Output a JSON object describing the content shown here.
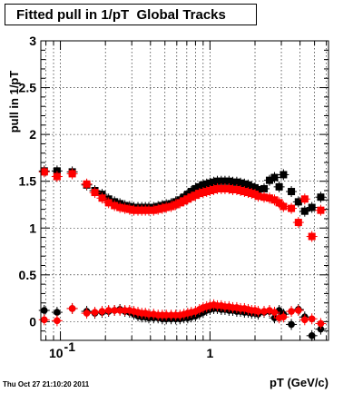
{
  "chart_data": {
    "type": "scatter",
    "title": "Fitted pull in 1/pT  Global Tracks",
    "xlabel": "pT (GeV/c)",
    "ylabel": "pull in 1/pT",
    "xscale": "log",
    "xlim": [
      0.074,
      6.2
    ],
    "ylim": [
      -0.2,
      3.0
    ],
    "grid": true,
    "yticks": [
      "0",
      "0.5",
      "1",
      "1.5",
      "2",
      "2.5",
      "3"
    ],
    "xticks": [
      "10",
      "-1",
      "1"
    ],
    "colors": {
      "black_series": "#000000",
      "red_series": "#ff0000"
    },
    "series": [
      {
        "color": "black",
        "marker": "square",
        "points": [
          [
            0.078,
            1.61
          ],
          [
            0.095,
            1.61
          ],
          [
            0.12,
            1.6
          ],
          [
            0.15,
            1.46
          ],
          [
            0.17,
            1.4
          ],
          [
            0.19,
            1.36
          ],
          [
            0.21,
            1.31
          ],
          [
            0.23,
            1.28
          ],
          [
            0.25,
            1.26
          ],
          [
            0.27,
            1.24
          ],
          [
            0.29,
            1.23
          ],
          [
            0.31,
            1.22
          ],
          [
            0.33,
            1.22
          ],
          [
            0.35,
            1.22
          ],
          [
            0.37,
            1.22
          ],
          [
            0.39,
            1.22
          ],
          [
            0.42,
            1.22
          ],
          [
            0.45,
            1.23
          ],
          [
            0.48,
            1.24
          ],
          [
            0.51,
            1.25
          ],
          [
            0.55,
            1.26
          ],
          [
            0.59,
            1.28
          ],
          [
            0.63,
            1.3
          ],
          [
            0.67,
            1.33
          ],
          [
            0.71,
            1.36
          ],
          [
            0.75,
            1.39
          ],
          [
            0.8,
            1.42
          ],
          [
            0.85,
            1.44
          ],
          [
            0.9,
            1.46
          ],
          [
            0.95,
            1.47
          ],
          [
            1.0,
            1.48
          ],
          [
            1.06,
            1.49
          ],
          [
            1.12,
            1.5
          ],
          [
            1.19,
            1.5
          ],
          [
            1.26,
            1.5
          ],
          [
            1.34,
            1.5
          ],
          [
            1.42,
            1.49
          ],
          [
            1.51,
            1.49
          ],
          [
            1.6,
            1.48
          ],
          [
            1.7,
            1.47
          ],
          [
            1.8,
            1.46
          ],
          [
            1.9,
            1.44
          ],
          [
            2.0,
            1.43
          ],
          [
            2.1,
            1.41
          ],
          [
            2.3,
            1.42
          ],
          [
            2.5,
            1.51
          ],
          [
            2.7,
            1.54
          ],
          [
            2.9,
            1.44
          ],
          [
            3.1,
            1.57
          ],
          [
            3.5,
            1.39
          ],
          [
            3.9,
            1.28
          ],
          [
            4.3,
            1.18
          ],
          [
            4.8,
            1.22
          ],
          [
            5.5,
            1.33
          ]
        ]
      },
      {
        "color": "red",
        "marker": "square",
        "points": [
          [
            0.078,
            1.6
          ],
          [
            0.095,
            1.55
          ],
          [
            0.12,
            1.58
          ],
          [
            0.15,
            1.47
          ],
          [
            0.17,
            1.38
          ],
          [
            0.19,
            1.32
          ],
          [
            0.21,
            1.27
          ],
          [
            0.23,
            1.24
          ],
          [
            0.25,
            1.22
          ],
          [
            0.27,
            1.21
          ],
          [
            0.29,
            1.2
          ],
          [
            0.31,
            1.19
          ],
          [
            0.33,
            1.19
          ],
          [
            0.35,
            1.19
          ],
          [
            0.37,
            1.19
          ],
          [
            0.39,
            1.19
          ],
          [
            0.42,
            1.19
          ],
          [
            0.45,
            1.2
          ],
          [
            0.48,
            1.21
          ],
          [
            0.51,
            1.22
          ],
          [
            0.55,
            1.23
          ],
          [
            0.59,
            1.25
          ],
          [
            0.63,
            1.27
          ],
          [
            0.67,
            1.29
          ],
          [
            0.71,
            1.31
          ],
          [
            0.75,
            1.33
          ],
          [
            0.8,
            1.35
          ],
          [
            0.85,
            1.37
          ],
          [
            0.9,
            1.38
          ],
          [
            0.95,
            1.39
          ],
          [
            1.0,
            1.4
          ],
          [
            1.06,
            1.41
          ],
          [
            1.12,
            1.42
          ],
          [
            1.19,
            1.42
          ],
          [
            1.26,
            1.42
          ],
          [
            1.34,
            1.42
          ],
          [
            1.42,
            1.41
          ],
          [
            1.51,
            1.41
          ],
          [
            1.6,
            1.4
          ],
          [
            1.7,
            1.39
          ],
          [
            1.8,
            1.38
          ],
          [
            1.9,
            1.37
          ],
          [
            2.0,
            1.36
          ],
          [
            2.1,
            1.34
          ],
          [
            2.3,
            1.33
          ],
          [
            2.5,
            1.32
          ],
          [
            2.7,
            1.3
          ],
          [
            2.9,
            1.27
          ],
          [
            3.1,
            1.23
          ],
          [
            3.5,
            1.21
          ],
          [
            3.9,
            1.06
          ],
          [
            4.3,
            1.31
          ],
          [
            4.8,
            0.91
          ],
          [
            5.5,
            1.19
          ]
        ]
      },
      {
        "color": "black",
        "marker": "circle",
        "points": [
          [
            0.078,
            0.12
          ],
          [
            0.095,
            0.1
          ],
          [
            0.12,
            0.14
          ],
          [
            0.15,
            0.11
          ],
          [
            0.17,
            0.09
          ],
          [
            0.19,
            0.1
          ],
          [
            0.21,
            0.11
          ],
          [
            0.23,
            0.12
          ],
          [
            0.25,
            0.13
          ],
          [
            0.27,
            0.11
          ],
          [
            0.29,
            0.1
          ],
          [
            0.31,
            0.08
          ],
          [
            0.33,
            0.06
          ],
          [
            0.35,
            0.05
          ],
          [
            0.37,
            0.05
          ],
          [
            0.39,
            0.04
          ],
          [
            0.42,
            0.04
          ],
          [
            0.45,
            0.04
          ],
          [
            0.48,
            0.03
          ],
          [
            0.51,
            0.03
          ],
          [
            0.55,
            0.03
          ],
          [
            0.59,
            0.03
          ],
          [
            0.63,
            0.03
          ],
          [
            0.67,
            0.04
          ],
          [
            0.71,
            0.04
          ],
          [
            0.75,
            0.05
          ],
          [
            0.8,
            0.06
          ],
          [
            0.85,
            0.08
          ],
          [
            0.9,
            0.1
          ],
          [
            0.95,
            0.12
          ],
          [
            1.0,
            0.13
          ],
          [
            1.06,
            0.14
          ],
          [
            1.12,
            0.14
          ],
          [
            1.19,
            0.13
          ],
          [
            1.26,
            0.13
          ],
          [
            1.34,
            0.12
          ],
          [
            1.42,
            0.12
          ],
          [
            1.51,
            0.11
          ],
          [
            1.6,
            0.11
          ],
          [
            1.7,
            0.1
          ],
          [
            1.8,
            0.1
          ],
          [
            1.9,
            0.09
          ],
          [
            2.0,
            0.09
          ],
          [
            2.1,
            0.08
          ],
          [
            2.3,
            0.1
          ],
          [
            2.5,
            0.11
          ],
          [
            2.7,
            0.04
          ],
          [
            2.9,
            0.12
          ],
          [
            3.1,
            0.08
          ],
          [
            3.5,
            -0.03
          ],
          [
            3.9,
            0.13
          ],
          [
            4.3,
            0.05
          ],
          [
            4.8,
            -0.15
          ],
          [
            5.5,
            -0.08
          ]
        ]
      },
      {
        "color": "red",
        "marker": "circle",
        "points": [
          [
            0.078,
            0.02
          ],
          [
            0.095,
            0.01
          ],
          [
            0.12,
            0.14
          ],
          [
            0.15,
            0.09
          ],
          [
            0.17,
            0.1
          ],
          [
            0.19,
            0.11
          ],
          [
            0.21,
            0.12
          ],
          [
            0.23,
            0.12
          ],
          [
            0.25,
            0.12
          ],
          [
            0.27,
            0.12
          ],
          [
            0.29,
            0.12
          ],
          [
            0.31,
            0.11
          ],
          [
            0.33,
            0.1
          ],
          [
            0.35,
            0.09
          ],
          [
            0.37,
            0.09
          ],
          [
            0.39,
            0.08
          ],
          [
            0.42,
            0.08
          ],
          [
            0.45,
            0.07
          ],
          [
            0.48,
            0.07
          ],
          [
            0.51,
            0.07
          ],
          [
            0.55,
            0.07
          ],
          [
            0.59,
            0.07
          ],
          [
            0.63,
            0.07
          ],
          [
            0.67,
            0.08
          ],
          [
            0.71,
            0.09
          ],
          [
            0.75,
            0.1
          ],
          [
            0.8,
            0.11
          ],
          [
            0.85,
            0.13
          ],
          [
            0.9,
            0.15
          ],
          [
            0.95,
            0.16
          ],
          [
            1.0,
            0.17
          ],
          [
            1.06,
            0.18
          ],
          [
            1.12,
            0.17
          ],
          [
            1.19,
            0.17
          ],
          [
            1.26,
            0.16
          ],
          [
            1.34,
            0.16
          ],
          [
            1.42,
            0.15
          ],
          [
            1.51,
            0.15
          ],
          [
            1.6,
            0.14
          ],
          [
            1.7,
            0.14
          ],
          [
            1.8,
            0.13
          ],
          [
            1.9,
            0.12
          ],
          [
            2.0,
            0.12
          ],
          [
            2.1,
            0.11
          ],
          [
            2.3,
            0.11
          ],
          [
            2.5,
            0.12
          ],
          [
            2.7,
            0.1
          ],
          [
            2.9,
            0.04
          ],
          [
            3.1,
            0.05
          ],
          [
            3.5,
            0.11
          ],
          [
            3.9,
            0.12
          ],
          [
            4.3,
            0.02
          ],
          [
            4.8,
            0.03
          ],
          [
            5.5,
            -0.02
          ]
        ]
      }
    ]
  },
  "footer": {
    "timestamp": "Thu Oct 27 21:10:20 2011"
  }
}
